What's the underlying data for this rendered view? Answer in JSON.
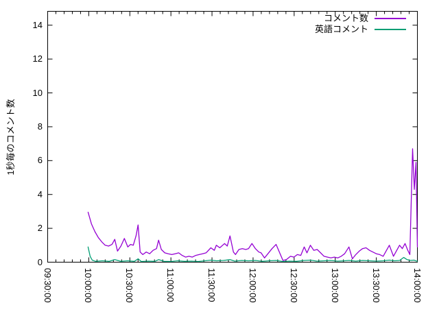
{
  "chart_data": {
    "type": "line",
    "title": "",
    "xlabel": "",
    "ylabel": "1秒毎のコメント数",
    "grid": "off",
    "legend_position": "top-right-inside",
    "y_ticks": [
      "0",
      "2",
      "4",
      "6",
      "8",
      "10",
      "12",
      "14"
    ],
    "x_ticks": [
      "09:30:00",
      "10:00:00",
      "10:30:00",
      "11:00:00",
      "11:30:00",
      "12:00:00",
      "12:30:00",
      "13:00:00",
      "13:30:00",
      "14:00:00"
    ],
    "x_axis_start": "09:30:00",
    "x_axis_end": "14:00:00",
    "x_range_seconds": [
      0,
      16200
    ],
    "ylim": [
      0,
      14.82
    ],
    "x_minor_ticks_per_interval": 4,
    "series": [
      {
        "name": "コメント数",
        "color": "#9400d3",
        "points": [
          [
            1770,
            2.95
          ],
          [
            1920,
            2.25
          ],
          [
            2070,
            1.8
          ],
          [
            2220,
            1.45
          ],
          [
            2370,
            1.2
          ],
          [
            2520,
            1.0
          ],
          [
            2670,
            0.95
          ],
          [
            2820,
            1.05
          ],
          [
            2940,
            1.35
          ],
          [
            3060,
            0.65
          ],
          [
            3210,
            0.95
          ],
          [
            3360,
            1.4
          ],
          [
            3510,
            0.9
          ],
          [
            3630,
            1.05
          ],
          [
            3750,
            1.0
          ],
          [
            3870,
            1.55
          ],
          [
            3960,
            2.2
          ],
          [
            4050,
            0.6
          ],
          [
            4170,
            0.45
          ],
          [
            4320,
            0.6
          ],
          [
            4470,
            0.5
          ],
          [
            4620,
            0.7
          ],
          [
            4770,
            0.8
          ],
          [
            4860,
            1.3
          ],
          [
            4980,
            0.75
          ],
          [
            5130,
            0.55
          ],
          [
            5280,
            0.5
          ],
          [
            5440,
            0.45
          ],
          [
            5590,
            0.5
          ],
          [
            5740,
            0.55
          ],
          [
            5890,
            0.4
          ],
          [
            6040,
            0.3
          ],
          [
            6190,
            0.35
          ],
          [
            6340,
            0.3
          ],
          [
            6490,
            0.4
          ],
          [
            6640,
            0.45
          ],
          [
            6790,
            0.5
          ],
          [
            6940,
            0.55
          ],
          [
            7150,
            0.85
          ],
          [
            7300,
            0.7
          ],
          [
            7390,
            1.0
          ],
          [
            7540,
            0.85
          ],
          [
            7750,
            1.1
          ],
          [
            7870,
            0.95
          ],
          [
            7990,
            1.55
          ],
          [
            8140,
            0.6
          ],
          [
            8230,
            0.45
          ],
          [
            8380,
            0.75
          ],
          [
            8530,
            0.8
          ],
          [
            8680,
            0.75
          ],
          [
            8800,
            0.8
          ],
          [
            8950,
            1.1
          ],
          [
            9100,
            0.8
          ],
          [
            9250,
            0.6
          ],
          [
            9350,
            0.55
          ],
          [
            9500,
            0.25
          ],
          [
            9650,
            0.5
          ],
          [
            9830,
            0.8
          ],
          [
            10010,
            1.05
          ],
          [
            10310,
            0.1
          ],
          [
            10460,
            0.15
          ],
          [
            10640,
            0.35
          ],
          [
            10790,
            0.3
          ],
          [
            10940,
            0.45
          ],
          [
            11090,
            0.4
          ],
          [
            11240,
            0.9
          ],
          [
            11360,
            0.55
          ],
          [
            11510,
            1.0
          ],
          [
            11660,
            0.7
          ],
          [
            11810,
            0.75
          ],
          [
            11960,
            0.55
          ],
          [
            12110,
            0.35
          ],
          [
            12260,
            0.3
          ],
          [
            12410,
            0.25
          ],
          [
            12560,
            0.3
          ],
          [
            12710,
            0.25
          ],
          [
            12860,
            0.35
          ],
          [
            13010,
            0.5
          ],
          [
            13200,
            0.9
          ],
          [
            13350,
            0.2
          ],
          [
            13500,
            0.45
          ],
          [
            13650,
            0.65
          ],
          [
            13800,
            0.8
          ],
          [
            13950,
            0.85
          ],
          [
            14100,
            0.7
          ],
          [
            14250,
            0.6
          ],
          [
            14400,
            0.5
          ],
          [
            14550,
            0.45
          ],
          [
            14700,
            0.35
          ],
          [
            14970,
            1.0
          ],
          [
            15150,
            0.35
          ],
          [
            15420,
            1.0
          ],
          [
            15540,
            0.8
          ],
          [
            15660,
            1.1
          ],
          [
            15780,
            0.7
          ],
          [
            15870,
            0.45
          ],
          [
            15990,
            6.7
          ],
          [
            16065,
            4.3
          ],
          [
            16140,
            5.9
          ],
          [
            16200,
            0.9
          ]
        ]
      },
      {
        "name": "英語コメント",
        "color": "#009e73",
        "points": [
          [
            1770,
            0.9
          ],
          [
            1860,
            0.35
          ],
          [
            1950,
            0.12
          ],
          [
            2100,
            0.05
          ],
          [
            2400,
            0.08
          ],
          [
            2700,
            0.05
          ],
          [
            2940,
            0.15
          ],
          [
            3200,
            0.05
          ],
          [
            3500,
            0.08
          ],
          [
            3800,
            0.05
          ],
          [
            3960,
            0.2
          ],
          [
            4100,
            0.04
          ],
          [
            4400,
            0.06
          ],
          [
            4700,
            0.05
          ],
          [
            4860,
            0.15
          ],
          [
            5100,
            0.05
          ],
          [
            5400,
            0.04
          ],
          [
            5700,
            0.08
          ],
          [
            6000,
            0.05
          ],
          [
            6300,
            0.06
          ],
          [
            6600,
            0.04
          ],
          [
            6900,
            0.08
          ],
          [
            7150,
            0.12
          ],
          [
            7400,
            0.08
          ],
          [
            7700,
            0.1
          ],
          [
            7990,
            0.15
          ],
          [
            8200,
            0.06
          ],
          [
            8500,
            0.1
          ],
          [
            8800,
            0.08
          ],
          [
            9100,
            0.1
          ],
          [
            9400,
            0.05
          ],
          [
            9700,
            0.08
          ],
          [
            10010,
            0.1
          ],
          [
            10300,
            0.04
          ],
          [
            10600,
            0.06
          ],
          [
            10900,
            0.05
          ],
          [
            11240,
            0.1
          ],
          [
            11510,
            0.12
          ],
          [
            11800,
            0.06
          ],
          [
            12100,
            0.08
          ],
          [
            12400,
            0.1
          ],
          [
            12700,
            0.06
          ],
          [
            13000,
            0.08
          ],
          [
            13200,
            0.1
          ],
          [
            13500,
            0.06
          ],
          [
            13800,
            0.1
          ],
          [
            14100,
            0.08
          ],
          [
            14400,
            0.06
          ],
          [
            14700,
            0.08
          ],
          [
            14970,
            0.12
          ],
          [
            15200,
            0.08
          ],
          [
            15420,
            0.1
          ],
          [
            15600,
            0.28
          ],
          [
            15750,
            0.15
          ],
          [
            15900,
            0.1
          ],
          [
            16050,
            0.12
          ],
          [
            16200,
            0.05
          ]
        ]
      }
    ]
  }
}
